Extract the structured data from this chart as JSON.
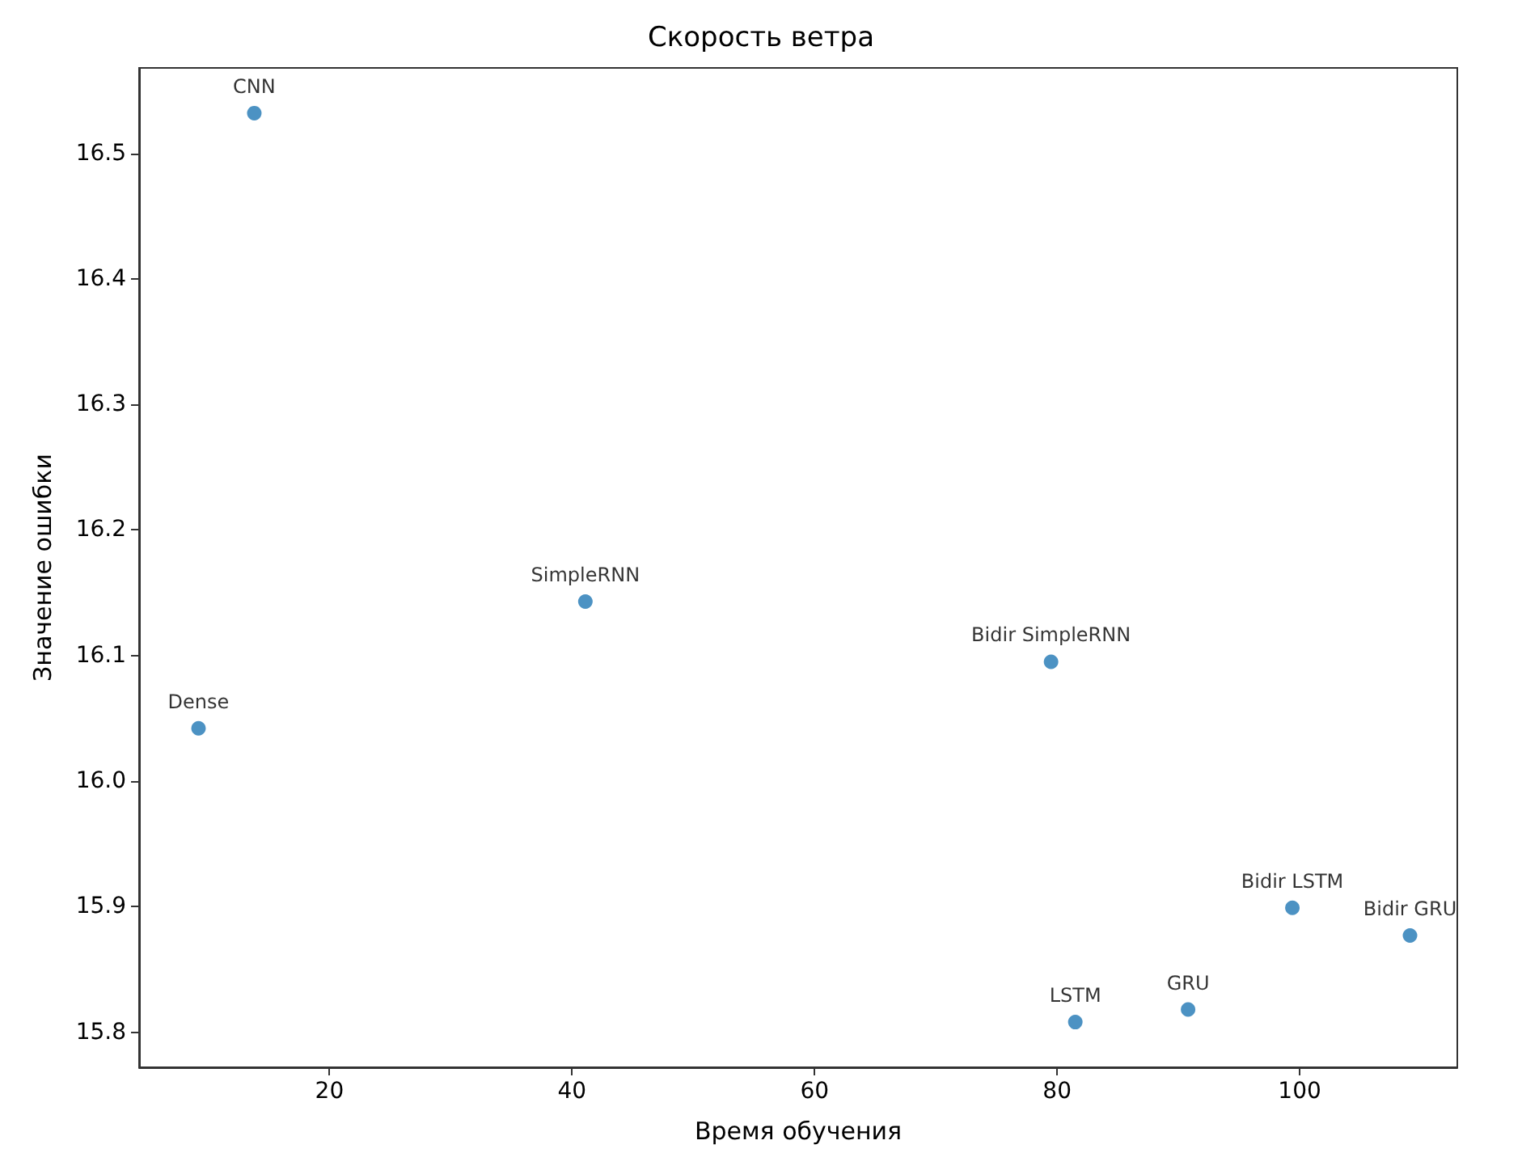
{
  "chart_data": {
    "type": "scatter",
    "title": "Скорость ветра",
    "xlabel": "Время обучения",
    "ylabel": "Значение ошибки",
    "x": [
      13.8,
      41.1,
      9.2,
      79.5,
      99.4,
      109.1,
      81.5,
      90.8
    ],
    "values": [
      16.532,
      16.143,
      16.042,
      16.095,
      15.899,
      15.877,
      15.808,
      15.818
    ],
    "value_labels": [
      "CNN",
      "SimpleRNN",
      "Dense",
      "Bidir SimpleRNN",
      "Bidir LSTM",
      "Bidir GRU",
      "LSTM",
      "GRU"
    ],
    "color": "#1f77b4",
    "marker": "circle",
    "grid": false,
    "xlim": [
      4.3,
      113
    ],
    "xticks": [
      20,
      40,
      60,
      80,
      100
    ],
    "ylim": [
      15.772,
      16.568
    ],
    "yticks": [
      {
        "value": 15.8,
        "label": "15.8"
      },
      {
        "value": 15.9,
        "label": "15.9"
      },
      {
        "value": 16.0,
        "label": "16.0"
      },
      {
        "value": 16.1,
        "label": "16.1"
      },
      {
        "value": 16.2,
        "label": "16.2"
      },
      {
        "value": 16.3,
        "label": "16.3"
      },
      {
        "value": 16.4,
        "label": "16.4"
      },
      {
        "value": 16.5,
        "label": "16.5"
      }
    ]
  }
}
